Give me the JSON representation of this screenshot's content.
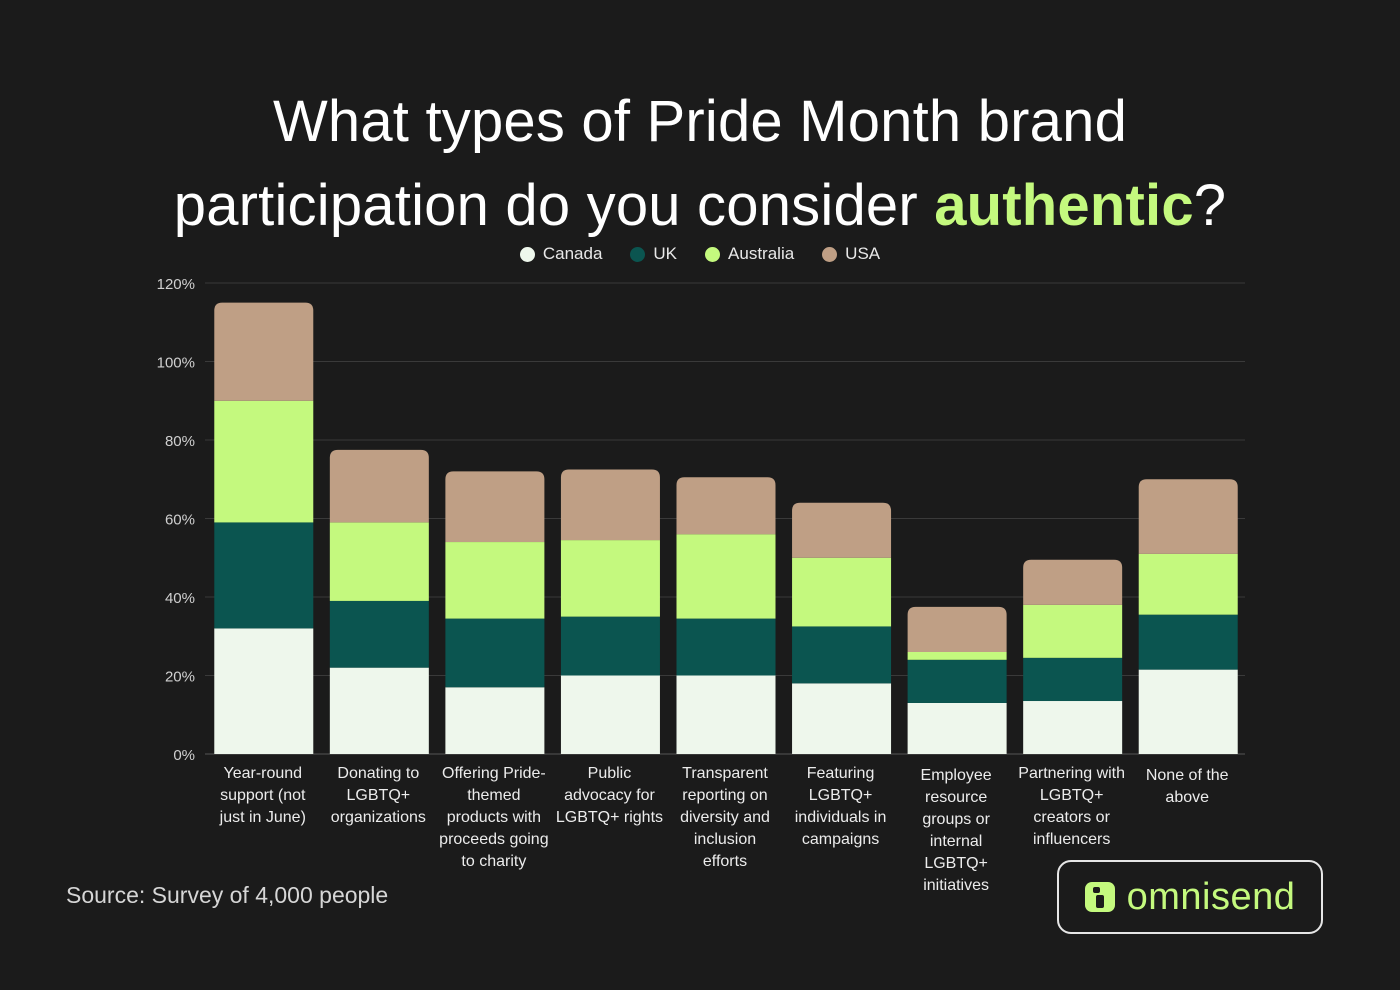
{
  "title": {
    "line1": "What types of Pride Month brand",
    "line2_prefix": "participation do you consider ",
    "line2_highlight": "authentic",
    "line2_suffix": "?"
  },
  "source": "Source: Survey of 4,000 people",
  "brand": {
    "name": "omnisend",
    "icon": "omnisend-logo-icon"
  },
  "colors": {
    "background": "#1b1b1b",
    "highlight": "#c4f97e",
    "grid": "#3a3a3a",
    "axis_text": "#d0d0d0"
  },
  "chart_data": {
    "type": "bar",
    "stacked": true,
    "categories": [
      "Year-round support (not just in June)",
      "Donating to LGBTQ+ organizations",
      "Offering Pride-themed products with proceeds going to charity",
      "Public advocacy for LGBTQ+ rights",
      "Transparent reporting on diversity and inclusion efforts",
      "Featuring LGBTQ+ individuals in campaigns",
      "Employee resource groups or internal LGBTQ+ initiatives",
      "Partnering with LGBTQ+ creators or influencers",
      "None of the above"
    ],
    "category_label_lines": [
      [
        "Year-round",
        "support (not",
        "just in June)"
      ],
      [
        "Donating to",
        "LGBTQ+",
        "organizations"
      ],
      [
        "Offering Pride-",
        "themed",
        "products with",
        "proceeds going",
        "to charity"
      ],
      [
        "Public",
        "advocacy for",
        "LGBTQ+ rights"
      ],
      [
        "Transparent",
        "reporting on",
        "diversity and",
        "inclusion",
        "efforts"
      ],
      [
        "Featuring",
        "LGBTQ+",
        "individuals in",
        "campaigns"
      ],
      [
        "Employee",
        "resource",
        "groups or",
        "internal",
        "LGBTQ+",
        "initiatives"
      ],
      [
        "Partnering with",
        "LGBTQ+",
        "creators or",
        "influencers"
      ],
      [
        "None of the",
        "above"
      ]
    ],
    "series": [
      {
        "name": "Canada",
        "color": "#eef7ec",
        "values": [
          32,
          22,
          17,
          20,
          20,
          18,
          13,
          13.5,
          21.5
        ]
      },
      {
        "name": "UK",
        "color": "#0b5550",
        "values": [
          27,
          17,
          17.5,
          15,
          14.5,
          14.5,
          11,
          11,
          14
        ]
      },
      {
        "name": "Australia",
        "color": "#c4f97e",
        "values": [
          31,
          20,
          19.5,
          19.5,
          21.5,
          17.5,
          2,
          13.5,
          15.5
        ]
      },
      {
        "name": "USA",
        "color": "#bf9f85",
        "values": [
          25,
          18.5,
          18,
          18,
          14.5,
          14,
          11.5,
          11.5,
          19
        ]
      }
    ],
    "ylim": [
      0,
      120
    ],
    "yticks": [
      0,
      20,
      40,
      60,
      80,
      100,
      120
    ],
    "ytick_labels": [
      "0%",
      "20%",
      "40%",
      "60%",
      "80%",
      "100%",
      "120%"
    ],
    "grid": true,
    "legend_position": "top-center"
  }
}
